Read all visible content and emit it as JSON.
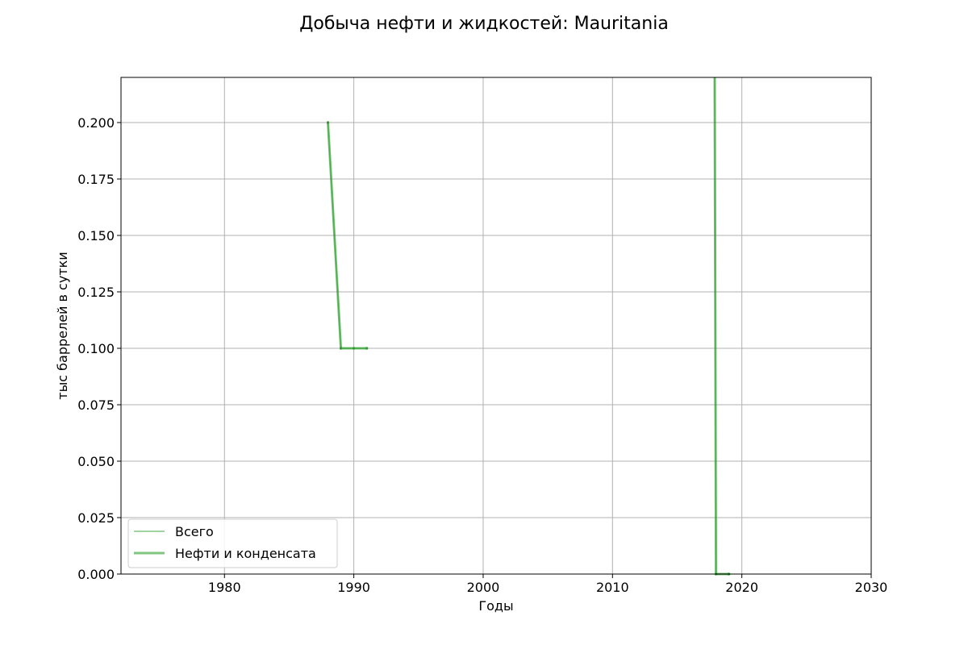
{
  "chart_data": {
    "type": "line",
    "title": "Добыча нефти и жидкостей: Mauritania",
    "xlabel": "Годы",
    "ylabel": "тыс баррелей в сутки",
    "xlim": [
      1972,
      2030
    ],
    "ylim": [
      0,
      0.22
    ],
    "xticks": [
      1980,
      1990,
      2000,
      2010,
      2020,
      2030
    ],
    "yticks": [
      0.0,
      0.025,
      0.05,
      0.075,
      0.1,
      0.125,
      0.15,
      0.175,
      0.2
    ],
    "ytick_labels": [
      "0.000",
      "0.025",
      "0.050",
      "0.075",
      "0.100",
      "0.125",
      "0.150",
      "0.175",
      "0.200"
    ],
    "grid": true,
    "legend_position": "lower-left",
    "series": [
      {
        "name": "Всего",
        "color": "#2ca02c",
        "style": "thin",
        "segments": [
          [
            [
              1988,
              0.2
            ],
            [
              1989,
              0.1
            ],
            [
              1990,
              0.1
            ],
            [
              1991,
              0.1
            ]
          ],
          [
            [
              2017.9,
              0.22
            ],
            [
              2018,
              0.0
            ],
            [
              2019,
              0.0
            ]
          ]
        ]
      },
      {
        "name": "Нефти и конденсата",
        "color": "#2ca02c",
        "style": "thick",
        "segments": [
          [
            [
              1988,
              0.2
            ],
            [
              1989,
              0.1
            ],
            [
              1990,
              0.1
            ],
            [
              1991,
              0.1
            ]
          ],
          [
            [
              2017.9,
              0.22
            ],
            [
              2018,
              0.0
            ],
            [
              2019,
              0.0
            ]
          ]
        ]
      }
    ]
  }
}
